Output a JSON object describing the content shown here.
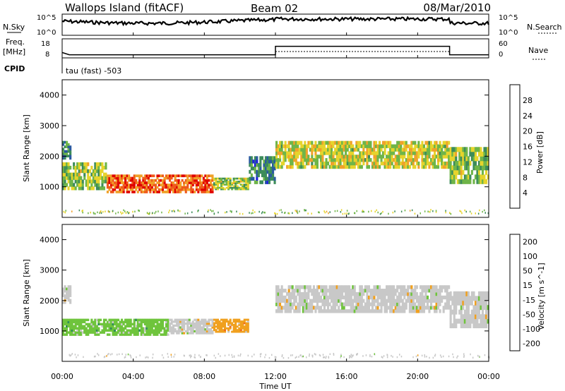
{
  "header": {
    "site": "Wallops Island (fitACF)",
    "beam": "Beam 02",
    "date": "08/Mar/2010"
  },
  "noise_panel": {
    "left_label": "N.Sky",
    "right_label": "N.Search",
    "tick_top": "10^5",
    "tick_bottom": "10^0",
    "right_tick_top": "10^5",
    "right_tick_bottom": "10^0"
  },
  "freq_panel": {
    "left_label_1": "Freq.",
    "left_label_2": "[MHz]",
    "right_label": "Nave",
    "left_ticks": [
      "18",
      "8"
    ],
    "right_ticks": [
      "60",
      "0"
    ],
    "freq_steps": [
      {
        "t": 0.0,
        "v": 10.5
      },
      {
        "t": 0.4,
        "v": 9.0
      },
      {
        "t": 12.0,
        "v": 9.0
      },
      {
        "t": 12.0,
        "v": 14.5
      },
      {
        "t": 21.8,
        "v": 14.5
      },
      {
        "t": 21.8,
        "v": 9.0
      },
      {
        "t": 24.0,
        "v": 9.0
      }
    ]
  },
  "cpid_panel": {
    "label": "CPID",
    "text": "tau (fast) -503"
  },
  "chart_data": [
    {
      "type": "heatmap",
      "name": "power",
      "ylabel": "Slant Range [km]",
      "xlabel": "Time UT",
      "xlim": [
        0,
        24
      ],
      "ylim": [
        0,
        4500
      ],
      "yticks": [
        "1000",
        "2000",
        "3000",
        "4000"
      ],
      "xticks": [
        "00:00",
        "04:00",
        "08:00",
        "12:00",
        "16:00",
        "20:00",
        "00:00"
      ],
      "colorbar": {
        "label": "Power [dB]",
        "ticks": [
          "4",
          "8",
          "12",
          "16",
          "20",
          "24",
          "28"
        ],
        "range": [
          0,
          30
        ],
        "colors": [
          "#1f1fe0",
          "#2a5aa0",
          "#3d8c5a",
          "#6fb548",
          "#e6d42c",
          "#f0a22a",
          "#ef5a1c",
          "#e00000"
        ]
      },
      "bands": [
        {
          "t0": 0.0,
          "t1": 0.5,
          "r0": 1900,
          "r1": 2500,
          "level": 10
        },
        {
          "t0": 0.0,
          "t1": 2.5,
          "r0": 900,
          "r1": 1800,
          "level": 14
        },
        {
          "t0": 2.5,
          "t1": 8.5,
          "r0": 800,
          "r1": 1400,
          "level": 24
        },
        {
          "t0": 8.5,
          "t1": 10.5,
          "r0": 900,
          "r1": 1300,
          "level": 14
        },
        {
          "t0": 10.5,
          "t1": 12.0,
          "r0": 1100,
          "r1": 2000,
          "level": 8
        },
        {
          "t0": 12.0,
          "t1": 21.8,
          "r0": 1600,
          "r1": 2500,
          "level": 16
        },
        {
          "t0": 21.8,
          "t1": 24.0,
          "r0": 1100,
          "r1": 2300,
          "level": 14
        }
      ]
    },
    {
      "type": "heatmap",
      "name": "velocity",
      "ylabel": "Slant Range [km]",
      "xlabel": "Time UT",
      "xlim": [
        0,
        24
      ],
      "ylim": [
        0,
        4500
      ],
      "yticks": [
        "1000",
        "2000",
        "3000",
        "4000"
      ],
      "xticks": [
        "00:00",
        "04:00",
        "08:00",
        "12:00",
        "16:00",
        "20:00",
        "00:00"
      ],
      "colorbar": {
        "label": "Velocity [m s^-1]",
        "ticks": [
          "200",
          "100",
          "50",
          "15",
          "-15",
          "-50",
          "-100",
          "-200"
        ],
        "colors": [
          "#1a1ab4",
          "#235fa0",
          "#2e8c5a",
          "#6fc43c",
          "#c8c8c8",
          "#f0a01e",
          "#ef6a1c",
          "#e60000"
        ]
      },
      "bands": [
        {
          "t0": 0.0,
          "t1": 0.5,
          "r0": 1900,
          "r1": 2500,
          "color_index": 4
        },
        {
          "t0": 0.0,
          "t1": 6.0,
          "r0": 850,
          "r1": 1400,
          "color_index": 3
        },
        {
          "t0": 6.0,
          "t1": 8.5,
          "r0": 900,
          "r1": 1400,
          "color_index": 4
        },
        {
          "t0": 8.5,
          "t1": 10.5,
          "r0": 950,
          "r1": 1400,
          "color_index": 5
        },
        {
          "t0": 12.0,
          "t1": 21.8,
          "r0": 1600,
          "r1": 2500,
          "color_index": 4
        },
        {
          "t0": 21.8,
          "t1": 24.0,
          "r0": 1100,
          "r1": 2300,
          "color_index": 4
        }
      ]
    }
  ]
}
